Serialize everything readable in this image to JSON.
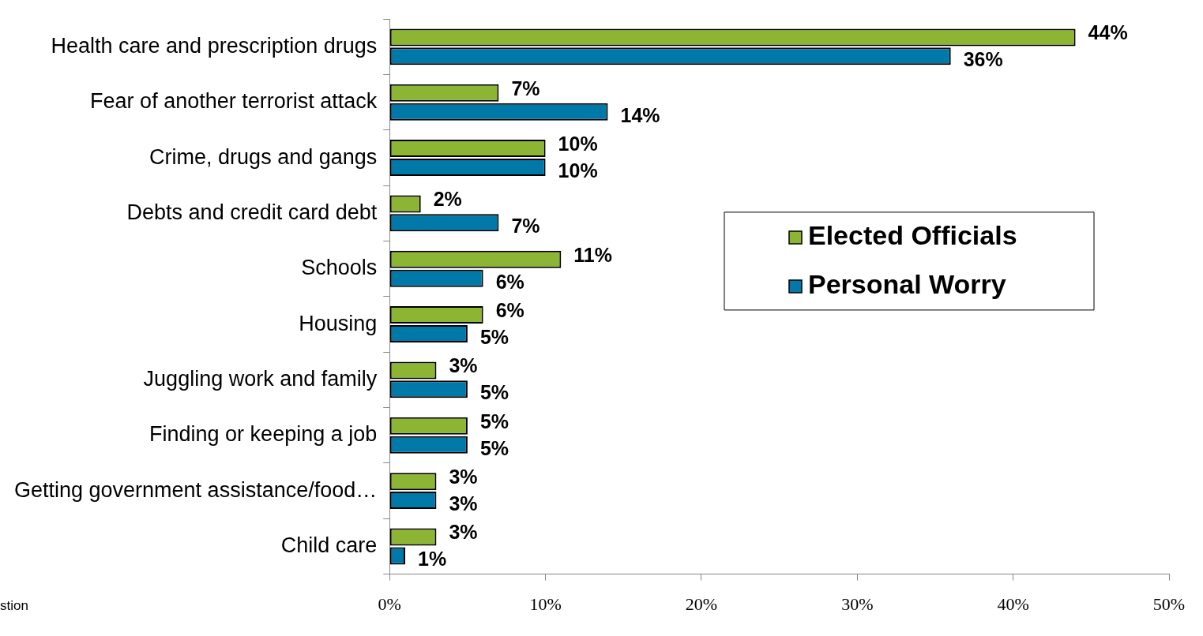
{
  "chart_data": {
    "type": "bar",
    "orientation": "horizontal",
    "categories": [
      "Health care and prescription drugs",
      "Fear of another terrorist attack",
      "Crime, drugs and gangs",
      "Debts and credit card debt",
      "Schools",
      "Housing",
      "Juggling work and family",
      "Finding or keeping a job",
      "Getting government assistance/food…",
      "Child care"
    ],
    "series": [
      {
        "name": "Elected Officials",
        "color": "#8db534",
        "values": [
          44,
          7,
          10,
          2,
          11,
          6,
          3,
          5,
          3,
          3
        ],
        "value_labels": [
          "44%",
          "7%",
          "10%",
          "2%",
          "11%",
          "6%",
          "3%",
          "5%",
          "3%",
          "3%"
        ]
      },
      {
        "name": "Personal Worry",
        "color": "#0079a8",
        "values": [
          36,
          14,
          10,
          7,
          6,
          5,
          5,
          5,
          3,
          1
        ],
        "value_labels": [
          "36%",
          "14%",
          "10%",
          "7%",
          "6%",
          "5%",
          "5%",
          "5%",
          "3%",
          "1%"
        ]
      }
    ],
    "xlim": [
      0,
      50
    ],
    "xticks": [
      {
        "value": 0,
        "label": "0%"
      },
      {
        "value": 10,
        "label": "10%"
      },
      {
        "value": 20,
        "label": "20%"
      },
      {
        "value": 30,
        "label": "30%"
      },
      {
        "value": 40,
        "label": "40%"
      },
      {
        "value": 50,
        "label": "50%"
      }
    ],
    "grid": false,
    "legend": "right",
    "annotations": [
      "stion"
    ]
  }
}
